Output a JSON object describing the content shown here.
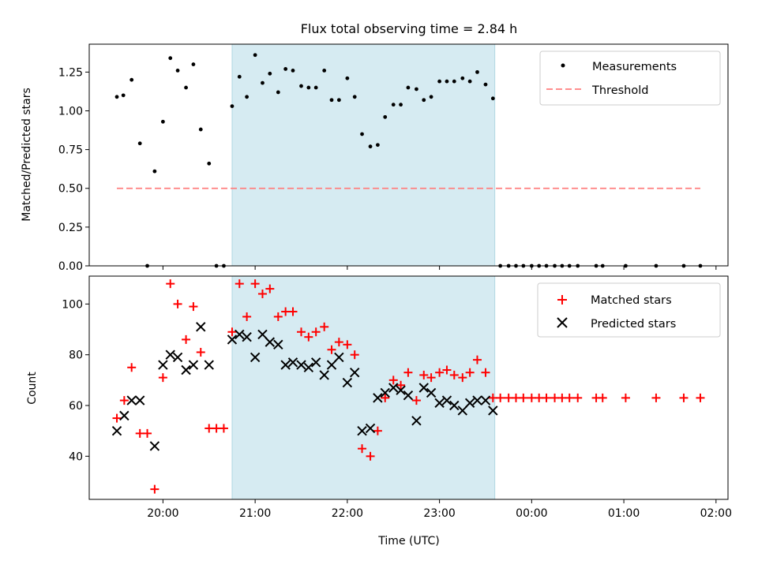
{
  "chart_data": [
    {
      "type": "scatter",
      "title": "Flux total observing time = 2.84 h",
      "ylabel": "Matched/Predicted stars",
      "xlabel": "",
      "ylim": [
        0,
        1.43
      ],
      "x_range_hours_utc": [
        19.2,
        26.13
      ],
      "yticks": [
        0,
        0.25,
        0.5,
        0.75,
        1.0,
        1.25
      ],
      "ytick_labels": [
        "0.00",
        "0.25",
        "0.50",
        "0.75",
        "1.00",
        "1.25"
      ],
      "shaded_interval_hours_utc": [
        20.75,
        23.6
      ],
      "shaded_color": "#add8e6",
      "grid": false,
      "legend": {
        "placement": "upper right",
        "entries": [
          {
            "label": "Measurements",
            "marker": "dot",
            "color": "#000000"
          },
          {
            "label": "Threshold",
            "marker": "dashed-line",
            "color": "#ff7f7f"
          }
        ]
      },
      "threshold": {
        "y": 0.5,
        "x": [
          19.5,
          25.83
        ],
        "color": "#ff7f7f"
      },
      "series": [
        {
          "name": "Measurements",
          "color": "#000000",
          "marker": "dot",
          "points": [
            [
              19.5,
              1.09
            ],
            [
              19.57,
              1.1
            ],
            [
              19.66,
              1.2
            ],
            [
              19.75,
              0.79
            ],
            [
              19.83,
              0.0
            ],
            [
              19.91,
              0.61
            ],
            [
              20.0,
              0.93
            ],
            [
              20.08,
              1.34
            ],
            [
              20.16,
              1.26
            ],
            [
              20.25,
              1.15
            ],
            [
              20.33,
              1.3
            ],
            [
              20.41,
              0.88
            ],
            [
              20.5,
              0.66
            ],
            [
              20.58,
              0.0
            ],
            [
              20.66,
              0.0
            ],
            [
              20.75,
              1.03
            ],
            [
              20.83,
              1.22
            ],
            [
              20.91,
              1.09
            ],
            [
              21.0,
              1.36
            ],
            [
              21.08,
              1.18
            ],
            [
              21.16,
              1.24
            ],
            [
              21.25,
              1.12
            ],
            [
              21.33,
              1.27
            ],
            [
              21.41,
              1.26
            ],
            [
              21.5,
              1.16
            ],
            [
              21.58,
              1.15
            ],
            [
              21.66,
              1.15
            ],
            [
              21.75,
              1.26
            ],
            [
              21.83,
              1.07
            ],
            [
              21.91,
              1.07
            ],
            [
              22.0,
              1.21
            ],
            [
              22.08,
              1.09
            ],
            [
              22.16,
              0.85
            ],
            [
              22.25,
              0.77
            ],
            [
              22.33,
              0.78
            ],
            [
              22.41,
              0.96
            ],
            [
              22.5,
              1.04
            ],
            [
              22.58,
              1.04
            ],
            [
              22.66,
              1.15
            ],
            [
              22.75,
              1.14
            ],
            [
              22.83,
              1.07
            ],
            [
              22.91,
              1.09
            ],
            [
              23.0,
              1.19
            ],
            [
              23.08,
              1.19
            ],
            [
              23.16,
              1.19
            ],
            [
              23.25,
              1.21
            ],
            [
              23.33,
              1.19
            ],
            [
              23.41,
              1.25
            ],
            [
              23.5,
              1.17
            ],
            [
              23.58,
              1.08
            ],
            [
              23.66,
              0.0
            ],
            [
              23.75,
              0.0
            ],
            [
              23.83,
              0.0
            ],
            [
              23.91,
              0.0
            ],
            [
              24.0,
              0.0
            ],
            [
              24.08,
              0.0
            ],
            [
              24.16,
              0.0
            ],
            [
              24.25,
              0.0
            ],
            [
              24.33,
              0.0
            ],
            [
              24.41,
              0.0
            ],
            [
              24.5,
              0.0
            ],
            [
              24.7,
              0.0
            ],
            [
              24.77,
              0.0
            ],
            [
              25.02,
              0.0
            ],
            [
              25.35,
              0.0
            ],
            [
              25.65,
              0.0
            ],
            [
              25.83,
              0.0
            ]
          ]
        }
      ]
    },
    {
      "type": "scatter",
      "title": "",
      "ylabel": "Count",
      "xlabel": "Time (UTC)",
      "ylim": [
        23,
        111
      ],
      "x_range_hours_utc": [
        19.2,
        26.13
      ],
      "yticks": [
        40,
        60,
        80,
        100
      ],
      "ytick_labels": [
        "40",
        "60",
        "80",
        "100"
      ],
      "xticks_hours_utc": [
        20,
        21,
        22,
        23,
        24,
        25,
        26
      ],
      "xtick_labels": [
        "20:00",
        "21:00",
        "22:00",
        "23:00",
        "00:00",
        "01:00",
        "02:00"
      ],
      "shaded_interval_hours_utc": [
        20.75,
        23.6
      ],
      "shaded_color": "#add8e6",
      "grid": false,
      "legend": {
        "placement": "upper right",
        "entries": [
          {
            "label": "Matched stars",
            "marker": "plus",
            "color": "#ff0000"
          },
          {
            "label": "Predicted stars",
            "marker": "x",
            "color": "#000000"
          }
        ]
      },
      "series": [
        {
          "name": "Matched stars",
          "color": "#ff0000",
          "marker": "plus",
          "points": [
            [
              19.5,
              55
            ],
            [
              19.58,
              62
            ],
            [
              19.66,
              75
            ],
            [
              19.75,
              49
            ],
            [
              19.83,
              49
            ],
            [
              19.91,
              27
            ],
            [
              20.0,
              71
            ],
            [
              20.08,
              108
            ],
            [
              20.16,
              100
            ],
            [
              20.25,
              86
            ],
            [
              20.33,
              99
            ],
            [
              20.41,
              81
            ],
            [
              20.5,
              51
            ],
            [
              20.58,
              51
            ],
            [
              20.66,
              51
            ],
            [
              20.75,
              89
            ],
            [
              20.83,
              108
            ],
            [
              20.91,
              95
            ],
            [
              21.0,
              108
            ],
            [
              21.08,
              104
            ],
            [
              21.16,
              106
            ],
            [
              21.25,
              95
            ],
            [
              21.33,
              97
            ],
            [
              21.41,
              97
            ],
            [
              21.5,
              89
            ],
            [
              21.58,
              87
            ],
            [
              21.66,
              89
            ],
            [
              21.75,
              91
            ],
            [
              21.83,
              82
            ],
            [
              21.91,
              85
            ],
            [
              22.0,
              84
            ],
            [
              22.08,
              80
            ],
            [
              22.16,
              43
            ],
            [
              22.25,
              40
            ],
            [
              22.33,
              50
            ],
            [
              22.41,
              63
            ],
            [
              22.5,
              70
            ],
            [
              22.58,
              68
            ],
            [
              22.66,
              73
            ],
            [
              22.75,
              62
            ],
            [
              22.83,
              72
            ],
            [
              22.91,
              71
            ],
            [
              23.0,
              73
            ],
            [
              23.08,
              74
            ],
            [
              23.16,
              72
            ],
            [
              23.25,
              71
            ],
            [
              23.33,
              73
            ],
            [
              23.41,
              78
            ],
            [
              23.5,
              73
            ],
            [
              23.58,
              63
            ],
            [
              23.66,
              63
            ],
            [
              23.75,
              63
            ],
            [
              23.83,
              63
            ],
            [
              23.91,
              63
            ],
            [
              24.0,
              63
            ],
            [
              24.08,
              63
            ],
            [
              24.16,
              63
            ],
            [
              24.25,
              63
            ],
            [
              24.33,
              63
            ],
            [
              24.41,
              63
            ],
            [
              24.5,
              63
            ],
            [
              24.7,
              63
            ],
            [
              24.77,
              63
            ],
            [
              25.02,
              63
            ],
            [
              25.35,
              63
            ],
            [
              25.65,
              63
            ],
            [
              25.83,
              63
            ]
          ]
        },
        {
          "name": "Predicted stars",
          "color": "#000000",
          "marker": "x",
          "points": [
            [
              19.5,
              50
            ],
            [
              19.58,
              56
            ],
            [
              19.66,
              62
            ],
            [
              19.75,
              62
            ],
            [
              19.91,
              44
            ],
            [
              20.0,
              76
            ],
            [
              20.08,
              80
            ],
            [
              20.16,
              79
            ],
            [
              20.25,
              74
            ],
            [
              20.33,
              76
            ],
            [
              20.41,
              91
            ],
            [
              20.5,
              76
            ],
            [
              20.75,
              86
            ],
            [
              20.83,
              88
            ],
            [
              20.91,
              87
            ],
            [
              21.0,
              79
            ],
            [
              21.08,
              88
            ],
            [
              21.16,
              85
            ],
            [
              21.25,
              84
            ],
            [
              21.33,
              76
            ],
            [
              21.41,
              77
            ],
            [
              21.5,
              76
            ],
            [
              21.58,
              75
            ],
            [
              21.66,
              77
            ],
            [
              21.75,
              72
            ],
            [
              21.83,
              76
            ],
            [
              21.91,
              79
            ],
            [
              22.0,
              69
            ],
            [
              22.08,
              73
            ],
            [
              22.16,
              50
            ],
            [
              22.25,
              51
            ],
            [
              22.33,
              63
            ],
            [
              22.41,
              65
            ],
            [
              22.5,
              67
            ],
            [
              22.58,
              66
            ],
            [
              22.66,
              64
            ],
            [
              22.75,
              54
            ],
            [
              22.83,
              67
            ],
            [
              22.91,
              65
            ],
            [
              23.0,
              61
            ],
            [
              23.08,
              62
            ],
            [
              23.16,
              60
            ],
            [
              23.25,
              58
            ],
            [
              23.33,
              61
            ],
            [
              23.41,
              62
            ],
            [
              23.5,
              62
            ],
            [
              23.58,
              58
            ]
          ]
        }
      ]
    }
  ]
}
